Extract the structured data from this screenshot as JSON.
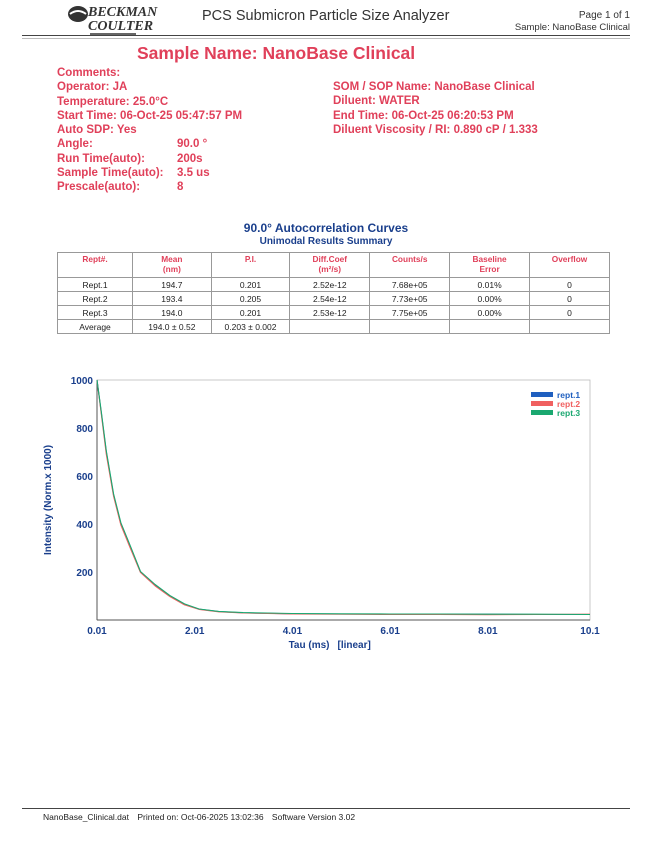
{
  "header": {
    "brand_line1": "BECKMAN",
    "brand_line2": "COULTER",
    "app_title": "PCS Submicron Particle Size Analyzer",
    "page": "Page 1 of 1",
    "sample": "Sample: NanoBase Clinical"
  },
  "sample_name": "Sample Name: NanoBase Clinical",
  "left_info": [
    {
      "label": "Comments:",
      "value": ""
    },
    {
      "label": "Operator: JA",
      "value": ""
    },
    {
      "label": "Temperature: 25.0°C",
      "value": ""
    },
    {
      "label": "Start Time: 06-Oct-25 05:47:57 PM",
      "value": ""
    },
    {
      "label": "Auto SDP: Yes",
      "value": ""
    },
    {
      "label": "Angle:",
      "value": "90.0 °"
    },
    {
      "label": "Run Time(auto):",
      "value": "200s"
    },
    {
      "label": "Sample Time(auto):",
      "value": "3.5 us"
    },
    {
      "label": "Prescale(auto):",
      "value": "8"
    }
  ],
  "right_info": [
    {
      "label": "SOM / SOP Name: NanoBase Clinical"
    },
    {
      "label": "Diluent: WATER"
    },
    {
      "label": "End Time: 06-Oct-25 06:20:53 PM"
    },
    {
      "label": "Diluent Viscosity / RI: 0.890 cP / 1.333"
    }
  ],
  "table": {
    "title": "90.0° Autocorrelation Curves",
    "subtitle": "Unimodal Results Summary",
    "headers": [
      {
        "l1": "Rept#.",
        "l2": ""
      },
      {
        "l1": "Mean",
        "l2": "(nm)"
      },
      {
        "l1": "P.I.",
        "l2": ""
      },
      {
        "l1": "Diff.Coef",
        "l2": "(m²/s)"
      },
      {
        "l1": "Counts/s",
        "l2": ""
      },
      {
        "l1": "Baseline",
        "l2": "Error"
      },
      {
        "l1": "Overflow",
        "l2": ""
      }
    ],
    "rows": [
      [
        "Rept.1",
        "194.7",
        "0.201",
        "2.52e-12",
        "7.68e+05",
        "0.01%",
        "0"
      ],
      [
        "Rept.2",
        "193.4",
        "0.205",
        "2.54e-12",
        "7.73e+05",
        "0.00%",
        "0"
      ],
      [
        "Rept.3",
        "194.0",
        "0.201",
        "2.53e-12",
        "7.75e+05",
        "0.00%",
        "0"
      ],
      [
        "Average",
        "194.0 ± 0.52",
        "0.203 ± 0.002",
        "",
        "",
        "",
        ""
      ]
    ]
  },
  "chart_data": {
    "type": "line",
    "title": "",
    "xlabel": "Tau (ms)",
    "xlabel_note": "[linear]",
    "ylabel": "Intensity (Norm.x 1000)",
    "xlim": [
      0.01,
      10.1
    ],
    "ylim": [
      0,
      1000
    ],
    "x_ticks": [
      "0.01",
      "2.01",
      "4.01",
      "6.01",
      "8.01",
      "10.1"
    ],
    "y_ticks": [
      "200",
      "400",
      "600",
      "800",
      "1000"
    ],
    "legend_position": "top-right",
    "colors": {
      "rept1": "#1f5fbf",
      "rept2": "#f06060",
      "rept3": "#1aa870"
    },
    "series": [
      {
        "name": "rept.1",
        "x": [
          0.01,
          0.1,
          0.2,
          0.35,
          0.5,
          0.7,
          0.9,
          1.2,
          1.5,
          1.8,
          2.1,
          2.5,
          3.0,
          3.5,
          4.0,
          5.0,
          6.0,
          7.0,
          8.0,
          9.0,
          10.1
        ],
        "values": [
          1000,
          860,
          700,
          520,
          400,
          300,
          200,
          145,
          100,
          65,
          45,
          35,
          30,
          28,
          26,
          25,
          25,
          24,
          24,
          23,
          23
        ]
      },
      {
        "name": "rept.2",
        "x": [
          0.01,
          0.1,
          0.2,
          0.35,
          0.5,
          0.7,
          0.9,
          1.2,
          1.5,
          1.8,
          2.1,
          2.5,
          3.0,
          3.5,
          4.0,
          5.0,
          6.0,
          7.0,
          8.0,
          9.0,
          10.1
        ],
        "values": [
          1000,
          855,
          690,
          515,
          395,
          295,
          198,
          142,
          98,
          63,
          44,
          34,
          29,
          27,
          25,
          24,
          23,
          23,
          22,
          23,
          24
        ]
      },
      {
        "name": "rept.3",
        "x": [
          0.01,
          0.1,
          0.2,
          0.35,
          0.5,
          0.7,
          0.9,
          1.2,
          1.5,
          1.8,
          2.1,
          2.5,
          3.0,
          3.5,
          4.0,
          5.0,
          6.0,
          7.0,
          8.0,
          9.0,
          10.1
        ],
        "values": [
          1000,
          865,
          705,
          525,
          405,
          305,
          202,
          148,
          102,
          67,
          46,
          36,
          31,
          29,
          27,
          26,
          25,
          25,
          24,
          24,
          23
        ]
      }
    ]
  },
  "footer": {
    "file": "NanoBase_Clinical.dat",
    "printed": "Printed on: Oct-06-2025 13:02:36",
    "software": "Software Version 3.02"
  }
}
